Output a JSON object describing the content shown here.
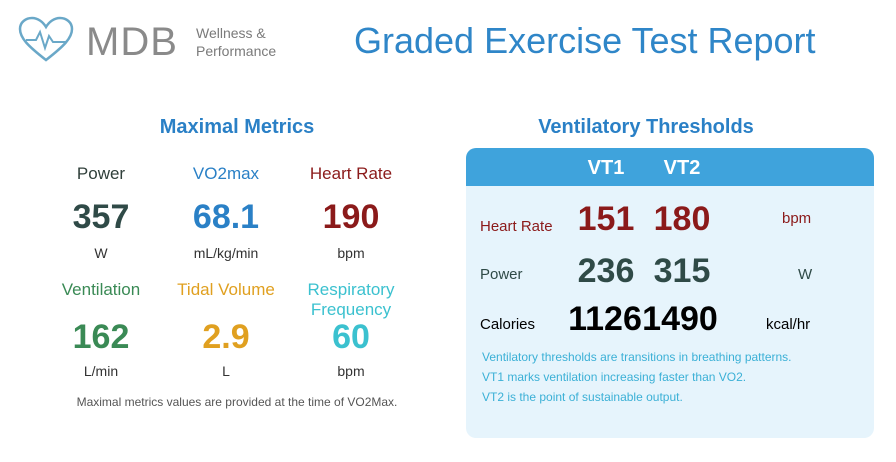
{
  "logo": {
    "name": "MDB",
    "line1": "Wellness &",
    "line2": "Performance",
    "icon": "heart-pulse-icon"
  },
  "report_title": "Graded Exercise Test Report",
  "maximal": {
    "title": "Maximal Metrics",
    "metrics": [
      {
        "label": "Power",
        "value": "357",
        "unit": "W",
        "label_color": "#2f3f3a",
        "value_color": "#2f4a47"
      },
      {
        "label": "VO2max",
        "value": "68.1",
        "unit": "mL/kg/min",
        "label_color": "#2a80c6",
        "value_color": "#2a80c6"
      },
      {
        "label": "Heart Rate",
        "value": "190",
        "unit": "bpm",
        "label_color": "#8b1a1a",
        "value_color": "#8b1a1a"
      },
      {
        "label": "Ventilation",
        "value": "162",
        "unit": "L/min",
        "label_color": "#3a8a55",
        "value_color": "#3a8a55"
      },
      {
        "label": "Tidal Volume",
        "value": "2.9",
        "unit": "L",
        "label_color": "#e0a020",
        "value_color": "#e0a020"
      },
      {
        "label_line1": "Respiratory",
        "label_line2": "Frequency",
        "value": "60",
        "unit": "bpm",
        "label_color": "#3bc1cf",
        "value_color": "#3bc1cf"
      }
    ],
    "note": "Maximal metrics values are provided at the time of VO2Max."
  },
  "vt": {
    "title": "Ventilatory Thresholds",
    "headers": [
      "VT1",
      "VT2"
    ],
    "rows": [
      {
        "label": "Heart Rate",
        "vt1": "151",
        "vt2": "180",
        "unit": "bpm",
        "label_color": "#8b1a1a",
        "value_color": "#8b1a1a",
        "unit_color": "#8b1a1a"
      },
      {
        "label": "Power",
        "vt1": "236",
        "vt2": "315",
        "unit": "W",
        "label_color": "#2f4a47",
        "value_color": "#2f4a47",
        "unit_color": "#2f4a47"
      },
      {
        "label": "Calories",
        "vt1": "1126",
        "vt2": "1490",
        "unit": "kcal/hr",
        "label_color": "#000000",
        "value_color": "#000000",
        "unit_color": "#000000"
      }
    ],
    "notes": [
      "Ventilatory thresholds are transitions in breathing patterns.",
      "VT1 marks ventilation increasing faster than VO2.",
      "VT2 is the point of sustainable output."
    ]
  }
}
